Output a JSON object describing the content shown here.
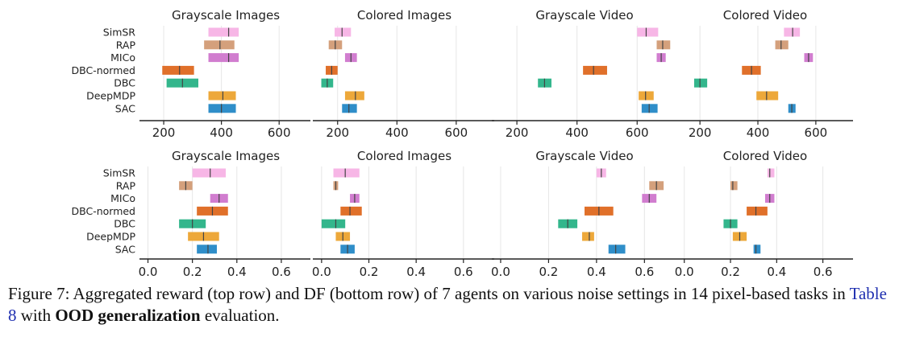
{
  "agents": [
    "SimSR",
    "RAP",
    "MICo",
    "DBC-normed",
    "DBC",
    "DeepMDP",
    "SAC"
  ],
  "colors": [
    "#f7b6e6",
    "#d4a07c",
    "#d17dcf",
    "#e0702a",
    "#33b68c",
    "#eda83a",
    "#2f8ec9"
  ],
  "chart_data": [
    {
      "type": "interval",
      "row": "top",
      "title": "Grayscale Images",
      "xlim": [
        130,
        700
      ],
      "ticks": [
        200,
        400,
        600
      ],
      "tick_labels": [
        "200",
        "400",
        "600"
      ],
      "series": [
        {
          "agent": "SimSR",
          "low": 355,
          "high": 460,
          "mid": 425
        },
        {
          "agent": "RAP",
          "low": 340,
          "high": 445,
          "mid": 395
        },
        {
          "agent": "MICo",
          "low": 355,
          "high": 460,
          "mid": 425
        },
        {
          "agent": "DBC-normed",
          "low": 195,
          "high": 305,
          "mid": 255
        },
        {
          "agent": "DBC",
          "low": 210,
          "high": 320,
          "mid": 265
        },
        {
          "agent": "DeepMDP",
          "low": 355,
          "high": 450,
          "mid": 405
        },
        {
          "agent": "SAC",
          "low": 355,
          "high": 450,
          "mid": 400
        }
      ]
    },
    {
      "type": "interval",
      "row": "top",
      "title": "Colored Images",
      "xlim": [
        130,
        720
      ],
      "ticks": [
        200,
        400,
        600
      ],
      "tick_labels": [
        "200",
        "400",
        "600"
      ],
      "series": [
        {
          "agent": "SimSR",
          "low": 190,
          "high": 245,
          "mid": 215
        },
        {
          "agent": "RAP",
          "low": 170,
          "high": 215,
          "mid": 192
        },
        {
          "agent": "MICo",
          "low": 225,
          "high": 265,
          "mid": 245
        },
        {
          "agent": "DBC-normed",
          "low": 160,
          "high": 200,
          "mid": 180
        },
        {
          "agent": "DBC",
          "low": 145,
          "high": 185,
          "mid": 165
        },
        {
          "agent": "DeepMDP",
          "low": 225,
          "high": 290,
          "mid": 260
        },
        {
          "agent": "SAC",
          "low": 215,
          "high": 265,
          "mid": 238
        }
      ]
    },
    {
      "type": "interval",
      "row": "top",
      "title": "Grayscale Video",
      "xlim": [
        130,
        720
      ],
      "ticks": [
        200,
        400,
        600
      ],
      "tick_labels": [
        "200",
        "400",
        "600"
      ],
      "series": [
        {
          "agent": "SimSR",
          "low": 600,
          "high": 670,
          "mid": 630
        },
        {
          "agent": "RAP",
          "low": 665,
          "high": 710,
          "mid": 685
        },
        {
          "agent": "MICo",
          "low": 665,
          "high": 695,
          "mid": 680
        },
        {
          "agent": "DBC-normed",
          "low": 420,
          "high": 500,
          "mid": 455
        },
        {
          "agent": "DBC",
          "low": 270,
          "high": 315,
          "mid": 292
        },
        {
          "agent": "DeepMDP",
          "low": 605,
          "high": 655,
          "mid": 628
        },
        {
          "agent": "SAC",
          "low": 615,
          "high": 668,
          "mid": 640
        }
      ]
    },
    {
      "type": "interval",
      "row": "top",
      "title": "Colored Video",
      "xlim": [
        130,
        720
      ],
      "ticks": [
        200,
        400,
        600
      ],
      "tick_labels": [
        "200",
        "400",
        "600"
      ],
      "series": [
        {
          "agent": "SimSR",
          "low": 490,
          "high": 545,
          "mid": 520
        },
        {
          "agent": "RAP",
          "low": 460,
          "high": 505,
          "mid": 480
        },
        {
          "agent": "MICo",
          "low": 560,
          "high": 590,
          "mid": 575
        },
        {
          "agent": "DBC-normed",
          "low": 345,
          "high": 410,
          "mid": 378
        },
        {
          "agent": "DBC",
          "low": 180,
          "high": 225,
          "mid": 200
        },
        {
          "agent": "DeepMDP",
          "low": 395,
          "high": 470,
          "mid": 430
        },
        {
          "agent": "SAC",
          "low": 505,
          "high": 530,
          "mid": 517
        }
      ]
    },
    {
      "type": "interval",
      "row": "bottom",
      "title": "Grayscale Images",
      "xlim": [
        -0.02,
        0.72
      ],
      "ticks": [
        0,
        0.2,
        0.4,
        0.6
      ],
      "tick_labels": [
        "0.0",
        "0.2",
        "0.4",
        "0.6"
      ],
      "series": [
        {
          "agent": "SimSR",
          "low": 0.2,
          "high": 0.35,
          "mid": 0.28
        },
        {
          "agent": "RAP",
          "low": 0.14,
          "high": 0.2,
          "mid": 0.17
        },
        {
          "agent": "MICo",
          "low": 0.28,
          "high": 0.36,
          "mid": 0.32
        },
        {
          "agent": "DBC-normed",
          "low": 0.22,
          "high": 0.36,
          "mid": 0.29
        },
        {
          "agent": "DBC",
          "low": 0.14,
          "high": 0.26,
          "mid": 0.2
        },
        {
          "agent": "DeepMDP",
          "low": 0.18,
          "high": 0.32,
          "mid": 0.25
        },
        {
          "agent": "SAC",
          "low": 0.22,
          "high": 0.31,
          "mid": 0.27
        }
      ]
    },
    {
      "type": "interval",
      "row": "bottom",
      "title": "Colored Images",
      "xlim": [
        -0.02,
        0.72
      ],
      "ticks": [
        0,
        0.2,
        0.4,
        0.6
      ],
      "tick_labels": [
        "0.0",
        "0.2",
        "0.4",
        "0.6"
      ],
      "series": [
        {
          "agent": "SimSR",
          "low": 0.05,
          "high": 0.16,
          "mid": 0.1
        },
        {
          "agent": "RAP",
          "low": 0.05,
          "high": 0.07,
          "mid": 0.06
        },
        {
          "agent": "MICo",
          "low": 0.12,
          "high": 0.16,
          "mid": 0.14
        },
        {
          "agent": "DBC-normed",
          "low": 0.08,
          "high": 0.17,
          "mid": 0.12
        },
        {
          "agent": "DBC",
          "low": 0.0,
          "high": 0.1,
          "mid": 0.06
        },
        {
          "agent": "DeepMDP",
          "low": 0.06,
          "high": 0.12,
          "mid": 0.09
        },
        {
          "agent": "SAC",
          "low": 0.08,
          "high": 0.14,
          "mid": 0.11
        }
      ]
    },
    {
      "type": "interval",
      "row": "bottom",
      "title": "Grayscale Video",
      "xlim": [
        -0.02,
        0.72
      ],
      "ticks": [
        0,
        0.2,
        0.4,
        0.6
      ],
      "tick_labels": [
        "0.0",
        "0.2",
        "0.4",
        "0.6"
      ],
      "series": [
        {
          "agent": "SimSR",
          "low": 0.4,
          "high": 0.44,
          "mid": 0.42
        },
        {
          "agent": "RAP",
          "low": 0.62,
          "high": 0.68,
          "mid": 0.65
        },
        {
          "agent": "MICo",
          "low": 0.59,
          "high": 0.65,
          "mid": 0.62
        },
        {
          "agent": "DBC-normed",
          "low": 0.35,
          "high": 0.47,
          "mid": 0.41
        },
        {
          "agent": "DBC",
          "low": 0.24,
          "high": 0.32,
          "mid": 0.28
        },
        {
          "agent": "DeepMDP",
          "low": 0.34,
          "high": 0.39,
          "mid": 0.37
        },
        {
          "agent": "SAC",
          "low": 0.45,
          "high": 0.52,
          "mid": 0.48
        }
      ]
    },
    {
      "type": "interval",
      "row": "bottom",
      "title": "Colored Video",
      "xlim": [
        -0.02,
        0.72
      ],
      "ticks": [
        0,
        0.2,
        0.4,
        0.6
      ],
      "tick_labels": [
        "0.0",
        "0.2",
        "0.4",
        "0.6"
      ],
      "series": [
        {
          "agent": "SimSR",
          "low": 0.36,
          "high": 0.39,
          "mid": 0.37
        },
        {
          "agent": "RAP",
          "low": 0.2,
          "high": 0.23,
          "mid": 0.21
        },
        {
          "agent": "MICo",
          "low": 0.35,
          "high": 0.39,
          "mid": 0.37
        },
        {
          "agent": "DBC-normed",
          "low": 0.27,
          "high": 0.36,
          "mid": 0.31
        },
        {
          "agent": "DBC",
          "low": 0.17,
          "high": 0.23,
          "mid": 0.2
        },
        {
          "agent": "DeepMDP",
          "low": 0.21,
          "high": 0.27,
          "mid": 0.24
        },
        {
          "agent": "SAC",
          "low": 0.3,
          "high": 0.33,
          "mid": 0.31
        }
      ]
    }
  ],
  "caption": {
    "part1": "Figure 7:  Aggregated reward (top row) and DF (bottom row) of 7 agents on various noise settings in 14 pixel-based tasks in ",
    "link": "Table 8",
    "part2": " with ",
    "bold": "OOD generalization",
    "part3": " evaluation."
  }
}
